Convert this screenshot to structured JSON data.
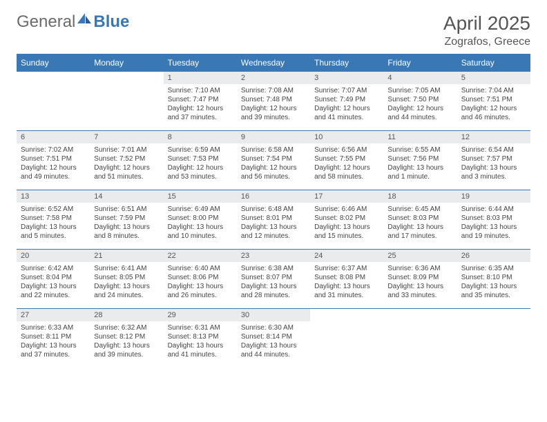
{
  "brand": {
    "part1": "General",
    "part2": "Blue"
  },
  "title": {
    "month": "April 2025",
    "location": "Zografos, Greece"
  },
  "colors": {
    "header_bg": "#3a78b5",
    "header_text": "#ffffff",
    "daynum_bg": "#e9ebec",
    "border": "#3a78b5",
    "text": "#444444",
    "logo_gray": "#6b6b6b",
    "logo_blue": "#3a78b5"
  },
  "days_of_week": [
    "Sunday",
    "Monday",
    "Tuesday",
    "Wednesday",
    "Thursday",
    "Friday",
    "Saturday"
  ],
  "first_day_index": 2,
  "days": [
    {
      "n": 1,
      "sr": "7:10 AM",
      "ss": "7:47 PM",
      "dl": "12 hours and 37 minutes."
    },
    {
      "n": 2,
      "sr": "7:08 AM",
      "ss": "7:48 PM",
      "dl": "12 hours and 39 minutes."
    },
    {
      "n": 3,
      "sr": "7:07 AM",
      "ss": "7:49 PM",
      "dl": "12 hours and 41 minutes."
    },
    {
      "n": 4,
      "sr": "7:05 AM",
      "ss": "7:50 PM",
      "dl": "12 hours and 44 minutes."
    },
    {
      "n": 5,
      "sr": "7:04 AM",
      "ss": "7:51 PM",
      "dl": "12 hours and 46 minutes."
    },
    {
      "n": 6,
      "sr": "7:02 AM",
      "ss": "7:51 PM",
      "dl": "12 hours and 49 minutes."
    },
    {
      "n": 7,
      "sr": "7:01 AM",
      "ss": "7:52 PM",
      "dl": "12 hours and 51 minutes."
    },
    {
      "n": 8,
      "sr": "6:59 AM",
      "ss": "7:53 PM",
      "dl": "12 hours and 53 minutes."
    },
    {
      "n": 9,
      "sr": "6:58 AM",
      "ss": "7:54 PM",
      "dl": "12 hours and 56 minutes."
    },
    {
      "n": 10,
      "sr": "6:56 AM",
      "ss": "7:55 PM",
      "dl": "12 hours and 58 minutes."
    },
    {
      "n": 11,
      "sr": "6:55 AM",
      "ss": "7:56 PM",
      "dl": "13 hours and 1 minute."
    },
    {
      "n": 12,
      "sr": "6:54 AM",
      "ss": "7:57 PM",
      "dl": "13 hours and 3 minutes."
    },
    {
      "n": 13,
      "sr": "6:52 AM",
      "ss": "7:58 PM",
      "dl": "13 hours and 5 minutes."
    },
    {
      "n": 14,
      "sr": "6:51 AM",
      "ss": "7:59 PM",
      "dl": "13 hours and 8 minutes."
    },
    {
      "n": 15,
      "sr": "6:49 AM",
      "ss": "8:00 PM",
      "dl": "13 hours and 10 minutes."
    },
    {
      "n": 16,
      "sr": "6:48 AM",
      "ss": "8:01 PM",
      "dl": "13 hours and 12 minutes."
    },
    {
      "n": 17,
      "sr": "6:46 AM",
      "ss": "8:02 PM",
      "dl": "13 hours and 15 minutes."
    },
    {
      "n": 18,
      "sr": "6:45 AM",
      "ss": "8:03 PM",
      "dl": "13 hours and 17 minutes."
    },
    {
      "n": 19,
      "sr": "6:44 AM",
      "ss": "8:03 PM",
      "dl": "13 hours and 19 minutes."
    },
    {
      "n": 20,
      "sr": "6:42 AM",
      "ss": "8:04 PM",
      "dl": "13 hours and 22 minutes."
    },
    {
      "n": 21,
      "sr": "6:41 AM",
      "ss": "8:05 PM",
      "dl": "13 hours and 24 minutes."
    },
    {
      "n": 22,
      "sr": "6:40 AM",
      "ss": "8:06 PM",
      "dl": "13 hours and 26 minutes."
    },
    {
      "n": 23,
      "sr": "6:38 AM",
      "ss": "8:07 PM",
      "dl": "13 hours and 28 minutes."
    },
    {
      "n": 24,
      "sr": "6:37 AM",
      "ss": "8:08 PM",
      "dl": "13 hours and 31 minutes."
    },
    {
      "n": 25,
      "sr": "6:36 AM",
      "ss": "8:09 PM",
      "dl": "13 hours and 33 minutes."
    },
    {
      "n": 26,
      "sr": "6:35 AM",
      "ss": "8:10 PM",
      "dl": "13 hours and 35 minutes."
    },
    {
      "n": 27,
      "sr": "6:33 AM",
      "ss": "8:11 PM",
      "dl": "13 hours and 37 minutes."
    },
    {
      "n": 28,
      "sr": "6:32 AM",
      "ss": "8:12 PM",
      "dl": "13 hours and 39 minutes."
    },
    {
      "n": 29,
      "sr": "6:31 AM",
      "ss": "8:13 PM",
      "dl": "13 hours and 41 minutes."
    },
    {
      "n": 30,
      "sr": "6:30 AM",
      "ss": "8:14 PM",
      "dl": "13 hours and 44 minutes."
    }
  ],
  "labels": {
    "sunrise": "Sunrise:",
    "sunset": "Sunset:",
    "daylight": "Daylight:"
  }
}
